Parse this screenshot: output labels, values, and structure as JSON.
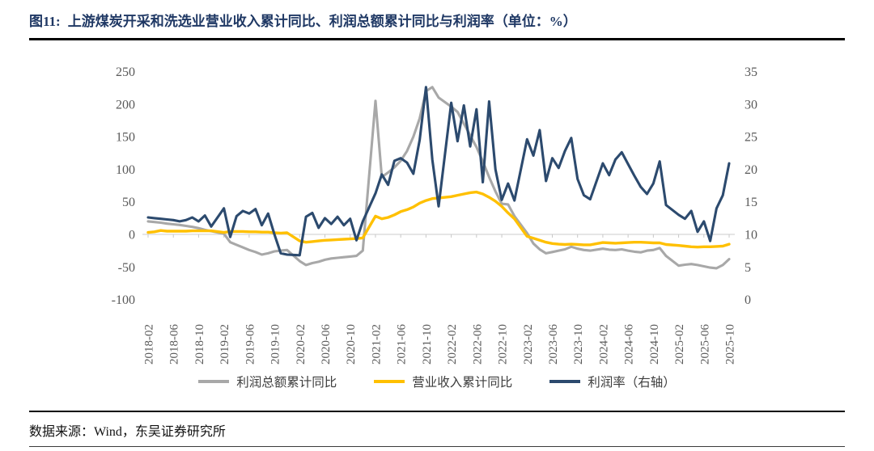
{
  "header": {
    "figure_label": "图11:",
    "figure_title": "上游煤炭开采和洗选业营业收入累计同比、利润总额累计同比与利润率（单位：%）"
  },
  "footer": {
    "source": "数据来源：Wind，东吴证券研究所"
  },
  "colors": {
    "title_navy": "#1f3864",
    "profit_total_line": "#a8a8a8",
    "revenue_line": "#ffc000",
    "margin_line": "#2c4a6e",
    "axis_text": "#595959",
    "axis_line": "#d5d5d5",
    "tick_mark": "#c8c8c8"
  },
  "chart_data": {
    "type": "line",
    "title": "上游煤炭开采和洗选业营业收入累计同比、利润总额累计同比与利润率",
    "unit": "%",
    "gridlines": "zero-axis-only",
    "legend_position": "bottom",
    "x_tick_labels": [
      "2018-02",
      "2018-06",
      "2018-10",
      "2019-02",
      "2019-06",
      "2019-10",
      "2020-02",
      "2020-06",
      "2020-10",
      "2021-02",
      "2021-06",
      "2021-10",
      "2022-02",
      "2022-06",
      "2022-10",
      "2023-02",
      "2023-06",
      "2023-10",
      "2024-02",
      "2024-06",
      "2024-10",
      "2025-02",
      "2025-06",
      "2025-10"
    ],
    "left_axis": {
      "min": -100,
      "max": 250,
      "ticks": [
        250,
        200,
        150,
        100,
        50,
        0,
        -50,
        -100
      ]
    },
    "right_axis": {
      "min": 0,
      "max": 35,
      "ticks": [
        35,
        30,
        25,
        20,
        15,
        10,
        5,
        0
      ]
    },
    "series": [
      {
        "name": "利润总额累计同比",
        "axis": "left",
        "color": "#a8a8a8",
        "points": [
          [
            "2018-02",
            20
          ],
          [
            "2018-03",
            19
          ],
          [
            "2018-04",
            18
          ],
          [
            "2018-05",
            16.5
          ],
          [
            "2018-06",
            15.5
          ],
          [
            "2018-07",
            14.5
          ],
          [
            "2018-08",
            13
          ],
          [
            "2018-09",
            11.5
          ],
          [
            "2018-10",
            9.5
          ],
          [
            "2018-11",
            7
          ],
          [
            "2018-12",
            5
          ],
          [
            "2019-02",
            1
          ],
          [
            "2019-03",
            -12
          ],
          [
            "2019-04",
            -16
          ],
          [
            "2019-05",
            -20
          ],
          [
            "2019-06",
            -24
          ],
          [
            "2019-07",
            -27
          ],
          [
            "2019-08",
            -31
          ],
          [
            "2019-09",
            -29
          ],
          [
            "2019-10",
            -26
          ],
          [
            "2019-11",
            -25
          ],
          [
            "2019-12",
            -24
          ],
          [
            "2020-02",
            -41
          ],
          [
            "2020-03",
            -47
          ],
          [
            "2020-04",
            -44
          ],
          [
            "2020-05",
            -42
          ],
          [
            "2020-06",
            -39
          ],
          [
            "2020-07",
            -37
          ],
          [
            "2020-08",
            -36
          ],
          [
            "2020-09",
            -35
          ],
          [
            "2020-10",
            -34
          ],
          [
            "2020-11",
            -33
          ],
          [
            "2020-12",
            -25
          ],
          [
            "2021-02",
            205
          ],
          [
            "2021-03",
            88
          ],
          [
            "2021-04",
            95
          ],
          [
            "2021-05",
            103
          ],
          [
            "2021-06",
            113
          ],
          [
            "2021-07",
            128
          ],
          [
            "2021-08",
            150
          ],
          [
            "2021-09",
            178
          ],
          [
            "2021-10",
            220
          ],
          [
            "2021-11",
            226
          ],
          [
            "2021-12",
            210
          ],
          [
            "2022-02",
            196
          ],
          [
            "2022-03",
            188
          ],
          [
            "2022-04",
            170
          ],
          [
            "2022-05",
            152
          ],
          [
            "2022-06",
            134
          ],
          [
            "2022-07",
            112
          ],
          [
            "2022-08",
            88
          ],
          [
            "2022-09",
            66
          ],
          [
            "2022-10",
            47
          ],
          [
            "2022-11",
            46
          ],
          [
            "2022-12",
            28
          ],
          [
            "2023-02",
            2
          ],
          [
            "2023-03",
            -14
          ],
          [
            "2023-04",
            -23
          ],
          [
            "2023-05",
            -29
          ],
          [
            "2023-06",
            -27
          ],
          [
            "2023-07",
            -25
          ],
          [
            "2023-08",
            -23
          ],
          [
            "2023-09",
            -19
          ],
          [
            "2023-10",
            -22
          ],
          [
            "2023-11",
            -24
          ],
          [
            "2023-12",
            -25
          ],
          [
            "2024-02",
            -22
          ],
          [
            "2024-03",
            -23.5
          ],
          [
            "2024-04",
            -24
          ],
          [
            "2024-05",
            -23
          ],
          [
            "2024-06",
            -25
          ],
          [
            "2024-07",
            -26.5
          ],
          [
            "2024-08",
            -27.5
          ],
          [
            "2024-09",
            -25
          ],
          [
            "2024-10",
            -24
          ],
          [
            "2024-11",
            -21
          ],
          [
            "2024-12",
            -33
          ],
          [
            "2025-02",
            -48
          ],
          [
            "2025-03",
            -46.5
          ],
          [
            "2025-04",
            -45.5
          ],
          [
            "2025-05",
            -47
          ],
          [
            "2025-06",
            -49
          ],
          [
            "2025-07",
            -51
          ],
          [
            "2025-08",
            -52
          ],
          [
            "2025-09",
            -47
          ],
          [
            "2025-10",
            -38
          ]
        ]
      },
      {
        "name": "营业收入累计同比",
        "axis": "left",
        "color": "#ffc000",
        "points": [
          [
            "2018-02",
            3
          ],
          [
            "2018-03",
            4
          ],
          [
            "2018-04",
            6
          ],
          [
            "2018-05",
            5
          ],
          [
            "2018-06",
            5
          ],
          [
            "2018-07",
            5
          ],
          [
            "2018-08",
            5
          ],
          [
            "2018-09",
            5.5
          ],
          [
            "2018-10",
            5.5
          ],
          [
            "2018-11",
            5.5
          ],
          [
            "2018-12",
            5.5
          ],
          [
            "2019-02",
            3
          ],
          [
            "2019-03",
            4.5
          ],
          [
            "2019-04",
            4.5
          ],
          [
            "2019-05",
            4.5
          ],
          [
            "2019-06",
            4
          ],
          [
            "2019-07",
            4
          ],
          [
            "2019-08",
            3.5
          ],
          [
            "2019-09",
            3.5
          ],
          [
            "2019-10",
            2.5
          ],
          [
            "2019-11",
            2
          ],
          [
            "2019-12",
            2.5
          ],
          [
            "2020-02",
            -10
          ],
          [
            "2020-03",
            -12
          ],
          [
            "2020-04",
            -11
          ],
          [
            "2020-05",
            -10
          ],
          [
            "2020-06",
            -9
          ],
          [
            "2020-07",
            -8.5
          ],
          [
            "2020-08",
            -8
          ],
          [
            "2020-09",
            -7.5
          ],
          [
            "2020-10",
            -7
          ],
          [
            "2020-11",
            -6.5
          ],
          [
            "2020-12",
            -5.5
          ],
          [
            "2021-02",
            28
          ],
          [
            "2021-03",
            24
          ],
          [
            "2021-04",
            26
          ],
          [
            "2021-05",
            30
          ],
          [
            "2021-06",
            35
          ],
          [
            "2021-07",
            38
          ],
          [
            "2021-08",
            42
          ],
          [
            "2021-09",
            48
          ],
          [
            "2021-10",
            52
          ],
          [
            "2021-11",
            55
          ],
          [
            "2021-12",
            56
          ],
          [
            "2022-02",
            58
          ],
          [
            "2022-03",
            60
          ],
          [
            "2022-04",
            62
          ],
          [
            "2022-05",
            64
          ],
          [
            "2022-06",
            65
          ],
          [
            "2022-07",
            62
          ],
          [
            "2022-08",
            57
          ],
          [
            "2022-09",
            51
          ],
          [
            "2022-10",
            43
          ],
          [
            "2022-11",
            33
          ],
          [
            "2022-12",
            24
          ],
          [
            "2023-02",
            -3
          ],
          [
            "2023-03",
            -6
          ],
          [
            "2023-04",
            -9
          ],
          [
            "2023-05",
            -12
          ],
          [
            "2023-06",
            -14
          ],
          [
            "2023-07",
            -15
          ],
          [
            "2023-08",
            -15.5
          ],
          [
            "2023-09",
            -15
          ],
          [
            "2023-10",
            -15.5
          ],
          [
            "2023-11",
            -16
          ],
          [
            "2023-12",
            -16
          ],
          [
            "2024-02",
            -12.5
          ],
          [
            "2024-03",
            -13
          ],
          [
            "2024-04",
            -13.5
          ],
          [
            "2024-05",
            -13
          ],
          [
            "2024-06",
            -12.5
          ],
          [
            "2024-07",
            -12
          ],
          [
            "2024-08",
            -12
          ],
          [
            "2024-09",
            -12.5
          ],
          [
            "2024-10",
            -13
          ],
          [
            "2024-11",
            -13
          ],
          [
            "2024-12",
            -15.5
          ],
          [
            "2025-02",
            -17
          ],
          [
            "2025-03",
            -18
          ],
          [
            "2025-04",
            -19
          ],
          [
            "2025-05",
            -19.5
          ],
          [
            "2025-06",
            -19
          ],
          [
            "2025-07",
            -19
          ],
          [
            "2025-08",
            -18.5
          ],
          [
            "2025-09",
            -18
          ],
          [
            "2025-10",
            -15
          ]
        ]
      },
      {
        "name": "利润率（右轴）",
        "axis": "right",
        "color": "#2c4a6e",
        "points": [
          [
            "2018-02",
            12.6
          ],
          [
            "2018-03",
            12.5
          ],
          [
            "2018-04",
            12.4
          ],
          [
            "2018-05",
            12.3
          ],
          [
            "2018-06",
            12.2
          ],
          [
            "2018-07",
            12.0
          ],
          [
            "2018-08",
            12.2
          ],
          [
            "2018-09",
            12.6
          ],
          [
            "2018-10",
            12.0
          ],
          [
            "2018-11",
            12.9
          ],
          [
            "2018-12",
            11.2
          ],
          [
            "2019-02",
            14.0
          ],
          [
            "2019-03",
            9.6
          ],
          [
            "2019-04",
            12.8
          ],
          [
            "2019-05",
            13.6
          ],
          [
            "2019-06",
            13.2
          ],
          [
            "2019-07",
            13.9
          ],
          [
            "2019-08",
            11.4
          ],
          [
            "2019-09",
            13.2
          ],
          [
            "2019-10",
            10.0
          ],
          [
            "2019-11",
            7.1
          ],
          [
            "2019-12",
            6.9
          ],
          [
            "2020-02",
            6.8
          ],
          [
            "2020-03",
            12.7
          ],
          [
            "2020-04",
            13.3
          ],
          [
            "2020-05",
            11.0
          ],
          [
            "2020-06",
            12.5
          ],
          [
            "2020-07",
            11.6
          ],
          [
            "2020-08",
            12.7
          ],
          [
            "2020-09",
            11.4
          ],
          [
            "2020-10",
            12.4
          ],
          [
            "2020-11",
            9.1
          ],
          [
            "2020-12",
            12.0
          ],
          [
            "2021-02",
            16.3
          ],
          [
            "2021-03",
            19.2
          ],
          [
            "2021-04",
            17.6
          ],
          [
            "2021-05",
            21.3
          ],
          [
            "2021-06",
            21.7
          ],
          [
            "2021-07",
            21.0
          ],
          [
            "2021-08",
            19.3
          ],
          [
            "2021-09",
            24.5
          ],
          [
            "2021-10",
            32.6
          ],
          [
            "2021-11",
            21.5
          ],
          [
            "2021-12",
            14.3
          ],
          [
            "2022-02",
            30.2
          ],
          [
            "2022-03",
            24.3
          ],
          [
            "2022-04",
            29.8
          ],
          [
            "2022-05",
            23.5
          ],
          [
            "2022-06",
            29.2
          ],
          [
            "2022-07",
            18.0
          ],
          [
            "2022-08",
            30.4
          ],
          [
            "2022-09",
            20.0
          ],
          [
            "2022-10",
            15.3
          ],
          [
            "2022-11",
            17.8
          ],
          [
            "2022-12",
            15.2
          ],
          [
            "2023-02",
            24.6
          ],
          [
            "2023-03",
            22.1
          ],
          [
            "2023-04",
            26.0
          ],
          [
            "2023-05",
            18.2
          ],
          [
            "2023-06",
            21.7
          ],
          [
            "2023-07",
            20.2
          ],
          [
            "2023-08",
            22.8
          ],
          [
            "2023-09",
            24.8
          ],
          [
            "2023-10",
            18.5
          ],
          [
            "2023-11",
            16.0
          ],
          [
            "2023-12",
            15.4
          ],
          [
            "2024-02",
            20.9
          ],
          [
            "2024-03",
            19.1
          ],
          [
            "2024-04",
            21.5
          ],
          [
            "2024-05",
            22.6
          ],
          [
            "2024-06",
            20.8
          ],
          [
            "2024-07",
            19.0
          ],
          [
            "2024-08",
            17.3
          ],
          [
            "2024-09",
            16.2
          ],
          [
            "2024-10",
            17.8
          ],
          [
            "2024-11",
            21.2
          ],
          [
            "2024-12",
            14.5
          ],
          [
            "2025-02",
            13.0
          ],
          [
            "2025-03",
            12.4
          ],
          [
            "2025-04",
            13.6
          ],
          [
            "2025-05",
            10.4
          ],
          [
            "2025-06",
            12.0
          ],
          [
            "2025-07",
            9.0
          ],
          [
            "2025-08",
            14.0
          ],
          [
            "2025-09",
            16.0
          ],
          [
            "2025-10",
            20.9
          ]
        ]
      }
    ]
  }
}
